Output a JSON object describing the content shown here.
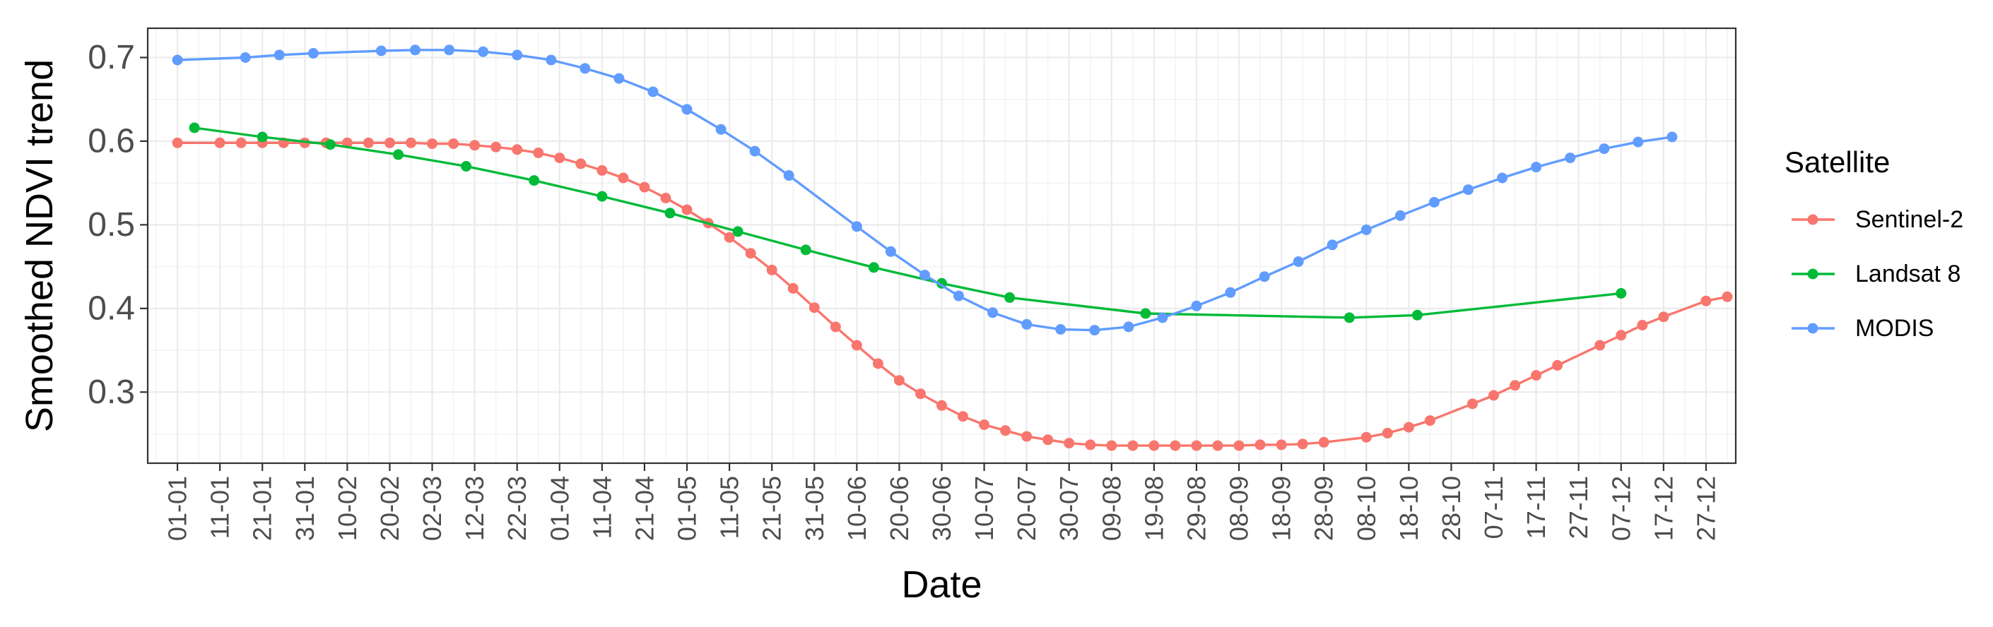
{
  "chart_data": {
    "type": "line",
    "xlabel": "Date",
    "ylabel": "Smoothed NDVI trend",
    "x_tick_labels": [
      "01-01",
      "11-01",
      "21-01",
      "31-01",
      "10-02",
      "20-02",
      "02-03",
      "12-03",
      "22-03",
      "01-04",
      "11-04",
      "21-04",
      "01-05",
      "11-05",
      "21-05",
      "31-05",
      "10-06",
      "20-06",
      "30-06",
      "10-07",
      "20-07",
      "30-07",
      "09-08",
      "19-08",
      "29-08",
      "08-09",
      "18-09",
      "28-09",
      "08-10",
      "18-10",
      "28-10",
      "07-11",
      "17-11",
      "27-11",
      "07-12",
      "17-12",
      "27-12"
    ],
    "y_ticks": [
      0.3,
      0.4,
      0.5,
      0.6,
      0.7
    ],
    "ylim": [
      0.215,
      0.735
    ],
    "xlim_day": [
      -7,
      367
    ],
    "grid": true,
    "legend": {
      "title": "Satellite",
      "position": "right"
    },
    "series": [
      {
        "name": "Sentinel-2",
        "color": "#F8766D",
        "points": [
          [
            "01-01",
            0.598
          ],
          [
            "11-01",
            0.598
          ],
          [
            "16-01",
            0.598
          ],
          [
            "21-01",
            0.598
          ],
          [
            "26-01",
            0.598
          ],
          [
            "31-01",
            0.598
          ],
          [
            "05-02",
            0.598
          ],
          [
            "10-02",
            0.598
          ],
          [
            "15-02",
            0.598
          ],
          [
            "20-02",
            0.598
          ],
          [
            "25-02",
            0.598
          ],
          [
            "02-03",
            0.597
          ],
          [
            "07-03",
            0.597
          ],
          [
            "12-03",
            0.595
          ],
          [
            "17-03",
            0.593
          ],
          [
            "22-03",
            0.59
          ],
          [
            "27-03",
            0.586
          ],
          [
            "01-04",
            0.58
          ],
          [
            "06-04",
            0.573
          ],
          [
            "11-04",
            0.565
          ],
          [
            "16-04",
            0.556
          ],
          [
            "21-04",
            0.545
          ],
          [
            "26-04",
            0.532
          ],
          [
            "01-05",
            0.518
          ],
          [
            "06-05",
            0.502
          ],
          [
            "11-05",
            0.485
          ],
          [
            "16-05",
            0.466
          ],
          [
            "21-05",
            0.446
          ],
          [
            "26-05",
            0.424
          ],
          [
            "31-05",
            0.401
          ],
          [
            "05-06",
            0.378
          ],
          [
            "10-06",
            0.356
          ],
          [
            "15-06",
            0.334
          ],
          [
            "20-06",
            0.314
          ],
          [
            "25-06",
            0.298
          ],
          [
            "30-06",
            0.284
          ],
          [
            "05-07",
            0.271
          ],
          [
            "10-07",
            0.261
          ],
          [
            "15-07",
            0.254
          ],
          [
            "20-07",
            0.247
          ],
          [
            "25-07",
            0.243
          ],
          [
            "30-07",
            0.239
          ],
          [
            "04-08",
            0.237
          ],
          [
            "09-08",
            0.236
          ],
          [
            "14-08",
            0.236
          ],
          [
            "19-08",
            0.236
          ],
          [
            "24-08",
            0.236
          ],
          [
            "29-08",
            0.236
          ],
          [
            "03-09",
            0.236
          ],
          [
            "08-09",
            0.236
          ],
          [
            "13-09",
            0.237
          ],
          [
            "18-09",
            0.237
          ],
          [
            "23-09",
            0.238
          ],
          [
            "28-09",
            0.24
          ],
          [
            "08-10",
            0.246
          ],
          [
            "13-10",
            0.251
          ],
          [
            "18-10",
            0.258
          ],
          [
            "23-10",
            0.266
          ],
          [
            "02-11",
            0.286
          ],
          [
            "07-11",
            0.296
          ],
          [
            "12-11",
            0.308
          ],
          [
            "17-11",
            0.32
          ],
          [
            "22-11",
            0.332
          ],
          [
            "02-12",
            0.356
          ],
          [
            "07-12",
            0.368
          ],
          [
            "12-12",
            0.38
          ],
          [
            "17-12",
            0.39
          ],
          [
            "27-12",
            0.409
          ],
          [
            "01-01",
            0.414
          ]
        ]
      },
      {
        "name": "Landsat 8",
        "color": "#00BA38",
        "points": [
          [
            "05-01",
            0.616
          ],
          [
            "21-01",
            0.605
          ],
          [
            "06-02",
            0.596
          ],
          [
            "22-02",
            0.584
          ],
          [
            "10-03",
            0.57
          ],
          [
            "26-03",
            0.553
          ],
          [
            "11-04",
            0.534
          ],
          [
            "27-04",
            0.514
          ],
          [
            "13-05",
            0.492
          ],
          [
            "29-05",
            0.47
          ],
          [
            "14-06",
            0.449
          ],
          [
            "30-06",
            0.43
          ],
          [
            "16-07",
            0.413
          ],
          [
            "17-08",
            0.394
          ],
          [
            "04-10",
            0.389
          ],
          [
            "20-10",
            0.392
          ],
          [
            "07-12",
            0.418
          ]
        ]
      },
      {
        "name": "MODIS",
        "color": "#619CFF",
        "points": [
          [
            "01-01",
            0.697
          ],
          [
            "17-01",
            0.7
          ],
          [
            "25-01",
            0.703
          ],
          [
            "02-02",
            0.705
          ],
          [
            "18-02",
            0.708
          ],
          [
            "26-02",
            0.709
          ],
          [
            "06-03",
            0.709
          ],
          [
            "14-03",
            0.707
          ],
          [
            "22-03",
            0.703
          ],
          [
            "30-03",
            0.697
          ],
          [
            "07-04",
            0.687
          ],
          [
            "15-04",
            0.675
          ],
          [
            "23-04",
            0.659
          ],
          [
            "01-05",
            0.638
          ],
          [
            "09-05",
            0.614
          ],
          [
            "17-05",
            0.588
          ],
          [
            "25-05",
            0.559
          ],
          [
            "10-06",
            0.498
          ],
          [
            "18-06",
            0.468
          ],
          [
            "26-06",
            0.44
          ],
          [
            "04-07",
            0.415
          ],
          [
            "12-07",
            0.395
          ],
          [
            "20-07",
            0.381
          ],
          [
            "28-07",
            0.375
          ],
          [
            "05-08",
            0.374
          ],
          [
            "13-08",
            0.378
          ],
          [
            "21-08",
            0.389
          ],
          [
            "29-08",
            0.403
          ],
          [
            "06-09",
            0.419
          ],
          [
            "14-09",
            0.438
          ],
          [
            "22-09",
            0.456
          ],
          [
            "30-09",
            0.476
          ],
          [
            "08-10",
            0.494
          ],
          [
            "16-10",
            0.511
          ],
          [
            "24-10",
            0.527
          ],
          [
            "01-11",
            0.542
          ],
          [
            "09-11",
            0.556
          ],
          [
            "17-11",
            0.569
          ],
          [
            "25-11",
            0.58
          ],
          [
            "03-12",
            0.591
          ],
          [
            "11-12",
            0.599
          ],
          [
            "19-12",
            0.605
          ]
        ]
      }
    ]
  }
}
